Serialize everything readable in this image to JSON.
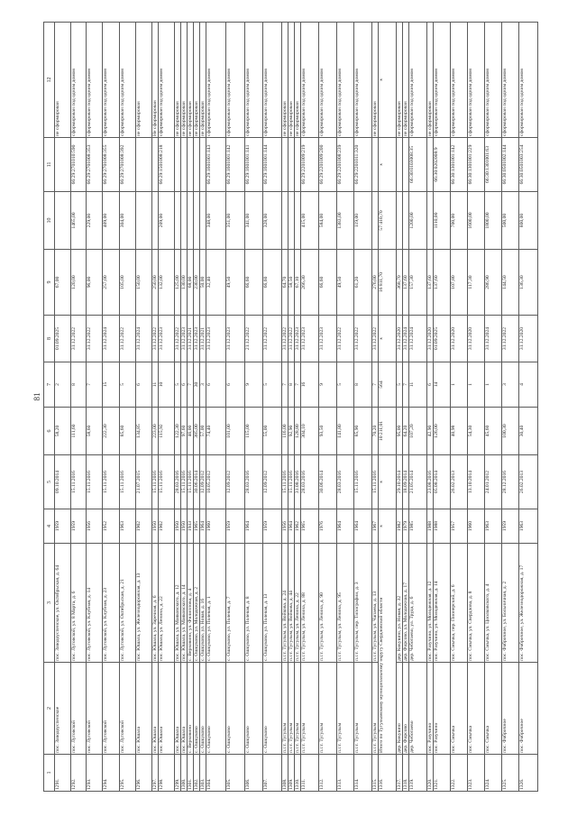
{
  "page_number": "81",
  "columns": [
    "1",
    "2",
    "3",
    "4",
    "5",
    "6",
    "7",
    "8",
    "9",
    "10",
    "11",
    "12"
  ],
  "rows": [
    {
      "cells": [
        "1291.",
        "пос. Заводоуспенское",
        "пос. Заводоуспенское, ул. Октябрьская, д. 64",
        "1959",
        "09.10.2014",
        "58,20",
        "2",
        "01.09.2025",
        "67,00",
        "",
        "",
        "не сформирован"
      ]
    },
    {
      "cells": [
        "1292.",
        "пос. Луговской",
        "пос. Луговской, ул. 8 Марта, д. 6",
        "1959",
        "15.11.2016",
        "111,60",
        "8",
        "31.12.2022",
        "120,00",
        "1465,00",
        "66:29:2701010:590",
        "сформирован под одним домом"
      ]
    },
    {
      "cells": [
        "1293.",
        "пос. Луговской",
        "пос. Луговской, ул. Клубная, д. 14",
        "1956",
        "15.11.2016",
        "58,60",
        "7",
        "31.12.2022",
        "96,00",
        "229,00",
        "66:29:2701008:353",
        "сформирован под одним домом"
      ]
    },
    {
      "cells": [
        "1294.",
        "пос. Луговской",
        "пос. Луговской, ул. Клубная, д. 23",
        "1952",
        "15.11.2016",
        "222,30",
        "15",
        "31.12.2024",
        "257,00",
        "409,00",
        "66:29:2701008:355",
        "сформирован под одним домом"
      ]
    },
    {
      "cells": [
        "1295.",
        "пос. Луговской",
        "пос. Луговской, ул. Октябрьская, д. 21",
        "1963",
        "15.11.2016",
        "85,60",
        "5",
        "31.12.2022",
        "105,00",
        "304,00",
        "66:29:2701008:392",
        "сформирован под одним домом"
      ]
    },
    {
      "cells": [
        "1296.",
        "пос. Юшала",
        "пос. Юшала, ул. Железнодорожная, д. 13",
        "1902",
        "21.07.2015",
        "134,85",
        "6",
        "31.12.2024",
        "150,00",
        "",
        "",
        "не сформирован"
      ]
    },
    {
      "cells": [
        "1297.",
        "пос. Юшала",
        "пос. Юшала, ул. Заречная, д. 6",
        "1950",
        "15.11.2016",
        "223,00",
        "11",
        "31.12.2022",
        "250,00",
        "",
        "",
        "Не сформирован"
      ]
    },
    {
      "cells": [
        "1298.",
        "пос. Юшала",
        "пос. Юшала, ул. Ленина, д. 22",
        "1902",
        "15.11.2016",
        "115,92",
        "10",
        "31.12.2023",
        "132,00",
        "209,00",
        "66:29:1501008:218",
        "сформирован под одним домом"
      ]
    },
    {
      "cells": [
        "1299.",
        "пос. Юшала",
        "пос. Юшала, ул. Маяковского, д. 12",
        "1950",
        "28.03.2016",
        "122,30",
        "5",
        "31.12.2022",
        "125,00",
        "",
        "",
        "не сформирован"
      ]
    },
    {
      "cells": [
        "1300.",
        "пос. Юшала",
        "пос. Юшала, ул. Маяковского, д. 14",
        "1950",
        "15.11.2016",
        "97,60",
        "6",
        "31.12.2023",
        "130,00",
        "",
        "",
        "не сформирован"
      ]
    },
    {
      "cells": [
        "1301.",
        "с. Верховино",
        "с. Верховино, ул. Филиппова, д. 4",
        "1933",
        "15.11.2016",
        "46,00",
        "7",
        "31.12.2021",
        "68,00",
        "",
        "",
        "не сформирован"
      ]
    },
    {
      "cells": [
        "1302.",
        "с. Ошкуково",
        "с. Ошкуково, ул. Молодежная, д. 2",
        "1965",
        "30.06.2014",
        "385,00",
        "30",
        "31.12.2023",
        "230,00",
        "",
        "",
        "не сформирован"
      ]
    },
    {
      "cells": [
        "1303.",
        "с. Ошкуково",
        "с. Ошкуково, ул. Новая, д. 16",
        "1964",
        "12.09.2012",
        "57,00",
        "3",
        "31.12.2021",
        "50,00",
        "",
        "",
        "не сформирован"
      ]
    },
    {
      "cells": [
        "1304.",
        "с. Ошкуково",
        "с. Ошкуково, ул. Полевая, д. 1",
        "1960",
        "10.05.2012",
        "74,40",
        "6",
        "31.12.2023",
        "32,40",
        "348,00",
        "66:29:1601001:143",
        "сформирован под одним домом"
      ]
    },
    {
      "cells": [
        "1305.",
        "с. Ошкуково",
        "с. Ошкуково, ул. Полевая, д. 7",
        "1959",
        "12.09.2012",
        "101,00",
        "6",
        "31.12.2023",
        "49,50",
        "351,00",
        "66:29:1601001:142",
        "сформирован под одним домом"
      ]
    },
    {
      "cells": [
        "1306.",
        "с. Ошкуково",
        "с. Ошкуково, ул. Полевая, д. 8",
        "1964",
        "28.03.2016",
        "115,00",
        "9",
        "21.12.2022",
        "66,60",
        "341,00",
        "66:29:1601001:141",
        "сформирован под одним домом"
      ]
    },
    {
      "cells": [
        "1307.",
        "с. Ошкуково",
        "с. Ошкуково, ул. Полевая, д. 13",
        "1959",
        "12.09.2012",
        "55,00",
        "5",
        "31.12.2022",
        "66,60",
        "328,00",
        "66:29:1601001:144",
        "сформирован под одним домом"
      ]
    },
    {
      "cells": [
        "1308.",
        "п.г.т. Тугулым",
        "п.г.т. Тугулым, ул. Войкова, д. 24",
        "1956",
        "15.11.2016",
        "116,00",
        "7",
        "31.12.2022",
        "64,70",
        "",
        "",
        "не сформирован"
      ]
    },
    {
      "cells": [
        "1309.",
        "п.г.т. Тугулым",
        "п.г.т. Тугулым, ул. Войкова, д. 44",
        "1964",
        "15.11.2016",
        "92,90",
        "8",
        "31.12.2022",
        "58,50",
        "",
        "",
        "не сформирован"
      ]
    },
    {
      "cells": [
        "1310.",
        "п.г.т. Тугулым",
        "п.г.т. Тугулым, ул. Ленина, д. 22",
        "1962",
        "31.08.2016",
        "128,80",
        "7",
        "31.12.2023",
        "67,10",
        "",
        "",
        "не сформирован"
      ]
    },
    {
      "cells": [
        "1311.",
        "п.г.т. Тугулым",
        "п.г.т. Тугулым, ул. Ленина, д. 88",
        "1965",
        "28.03.2016",
        "304,10",
        "16",
        "31.12.2023",
        "266,30",
        "415,00",
        "66:29:2201009:219",
        "сформирован под одним домом"
      ]
    },
    {
      "cells": [
        "1312.",
        "п.г.т. Тугулым",
        "п.г.т. Тугулым, ул. Ленина, д. 90",
        "1976",
        "30.06.2014",
        "93,50",
        "9",
        "31.12.2023",
        "66,60",
        "584,00",
        "66:29:2201009:200",
        "сформирован под одним домом"
      ]
    },
    {
      "cells": [
        "1313.",
        "п.г.т. Тугулым",
        "п.г.т. Тугулым, ул. Ленина, д. 95",
        "1964",
        "28.03.2016",
        "141,80",
        "5",
        "31.12.2022",
        "49,50",
        "1383,00",
        "66:29:2201008:239",
        "сформирован под одним домом"
      ]
    },
    {
      "cells": [
        "1314.",
        "п.г.т. Тугулым",
        "п.г.т. Тугулым, пер. Типографии, д. 3",
        "1964",
        "15.11.2016",
        "85,90",
        "8",
        "31.12.2022",
        "61,20",
        "119,00",
        "66:29:2201011:320",
        "сформирован под одним домом"
      ]
    },
    {
      "cells": [
        "1315.",
        "п.г.т. Тугулым",
        "п.г.т. Тугулым, ул. Чапаева, д. 13",
        "1967",
        "15.11.2016",
        "70,20",
        "7",
        "31.12.2022",
        "276,00",
        "",
        "",
        "не сформирован"
      ]
    },
    {
      "total": true,
      "cells": [
        "1316.",
        "Итого по Тугулымскому муниципальному округу Свердловской области",
        "",
        "x",
        "x",
        "10 211,01",
        "564",
        "x",
        "16 811,70",
        "57 410,70",
        "x",
        "x"
      ]
    },
    {
      "cells": [
        "1317.",
        "дер. Кокушно",
        "дер. Кокушно, ул. Новая, д. 32",
        "1982",
        "29.10.2014",
        "95,00",
        "5",
        "31.12.2020",
        "368,70",
        "",
        "",
        "не сформирован"
      ]
    },
    {
      "cells": [
        "1318.",
        "дер. Фирсово",
        "дер. Фирсово, ул. Молодежная, д. 17",
        "1979",
        "18.09.2014",
        "64,20",
        "7",
        "31.12.2024",
        "137,60",
        "",
        "",
        "не сформирован"
      ]
    },
    {
      "cells": [
        "1319.",
        "дер. Чеботаево",
        "дер. Чеботаево, ул. Труда, д. 6",
        "1985",
        "21.05.2014",
        "107,20",
        "11",
        "31.12.2024",
        "157,30",
        "1200,00",
        "66:30:0103008:35",
        "сформирован под одним домом"
      ]
    },
    {
      "cells": [
        "1320.",
        "пос. Разучино",
        "пос. Разучино, ул. Молодежная, д. 12",
        "1988",
        "23.08.2016",
        "42,90",
        "6",
        "31.12.2020",
        "137,60",
        "",
        "",
        "не сформирован"
      ]
    },
    {
      "cells": [
        "1321.",
        "пос. Разучино",
        "пос. Разучино, ул. Молодежная, д. 14",
        "1988",
        "05.08.2014",
        "126,00",
        "14",
        "01.09.2025",
        "137,60",
        "1110,00",
        "66:30:0202008:9",
        "сформирован под одним домом"
      ]
    },
    {
      "cells": [
        "1322.",
        "пос. Смычка",
        "пос. Смычка, пер. Пионерский, д. 6",
        "1957",
        "26.02.2013",
        "40,98",
        "1",
        "31.12.2020",
        "107,80",
        "700,00",
        "66:30:1301001:142",
        "сформирован под одним домом"
      ]
    },
    {
      "cells": [
        "1323.",
        "пос. Смычка",
        "пос. Смычка, ул. Свердлова, д. 8",
        "1960",
        "13.10.2014",
        "54,30",
        "1",
        "31.12.2020",
        "117,30",
        "1600,00",
        "66:30:1301001:229",
        "сформирован под одним домом"
      ]
    },
    {
      "cells": [
        "1324.",
        "пос. Смычка",
        "пос. Смычка, ул. Циолковского, д. 4",
        "1963",
        "24.01.2012",
        "45,60",
        "1",
        "31.12.2024",
        "286,90",
        "1800,00",
        "66:30:1301001:63",
        "сформирован под одним домом"
      ]
    },
    {
      "cells": [
        "1325.",
        "пос. Фабричное",
        "пос. Фабричное, ул. Больничная, д. 2",
        "1959",
        "28.12.2016",
        "100,30",
        "3",
        "31.12.2022",
        "144,50",
        "500,00",
        "66:30:0501002:144",
        "сформирован под одним домом"
      ]
    },
    {
      "cells": [
        "1326.",
        "пос. Фабричное",
        "пос. Фабричное, ул. Железнодорожная, д. 17",
        "1963",
        "26.02.2013",
        "30,40",
        "4",
        "31.12.2020",
        "136,30",
        "800,00",
        "66:30:0501003:254",
        "сформирован под одним домом"
      ]
    }
  ]
}
